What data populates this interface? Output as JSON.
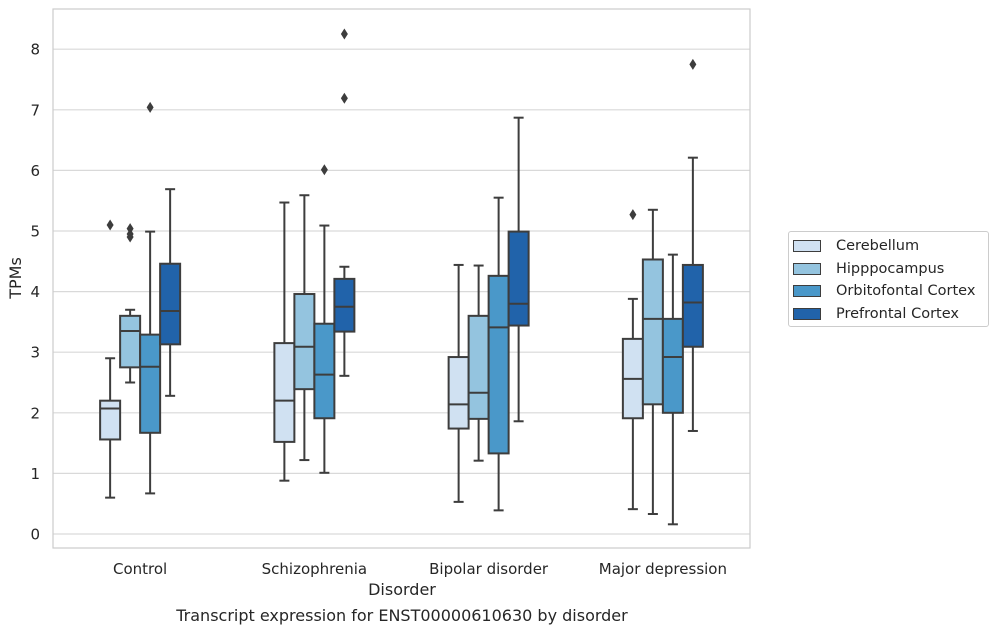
{
  "chart_data": {
    "type": "boxplot",
    "title": "",
    "xlabel": "Disorder",
    "ylabel": "TPMs",
    "ylim": [
      -0.22,
      8.67
    ],
    "yticks": [
      0,
      1,
      2,
      3,
      4,
      5,
      6,
      7,
      8
    ],
    "grid": "horizontal",
    "legend_position": "right",
    "categories": [
      "Control",
      "Schizophrenia",
      "Bipolar disorder",
      "Major depression"
    ],
    "series": [
      {
        "name": "Cerebellum",
        "color": "#d0e1f2",
        "boxes": [
          {
            "min": 0.6,
            "q1": 1.56,
            "median": 2.07,
            "q3": 2.2,
            "max": 2.9,
            "outliers": [
              5.1
            ]
          },
          {
            "min": 0.88,
            "q1": 1.52,
            "median": 2.2,
            "q3": 3.15,
            "max": 5.47,
            "outliers": []
          },
          {
            "min": 0.53,
            "q1": 1.74,
            "median": 2.14,
            "q3": 2.92,
            "max": 4.44,
            "outliers": []
          },
          {
            "min": 0.41,
            "q1": 1.91,
            "median": 2.56,
            "q3": 3.22,
            "max": 3.88,
            "outliers": [
              5.27
            ]
          }
        ]
      },
      {
        "name": "Hipppocampus",
        "color": "#94c4df",
        "boxes": [
          {
            "min": 2.5,
            "q1": 2.75,
            "median": 3.35,
            "q3": 3.6,
            "max": 3.7,
            "outliers": [
              4.9,
              4.95,
              5.04
            ]
          },
          {
            "min": 1.22,
            "q1": 2.39,
            "median": 3.09,
            "q3": 3.96,
            "max": 5.59,
            "outliers": []
          },
          {
            "min": 1.21,
            "q1": 1.9,
            "median": 2.33,
            "q3": 3.6,
            "max": 4.43,
            "outliers": []
          },
          {
            "min": 0.33,
            "q1": 2.14,
            "median": 3.55,
            "q3": 4.53,
            "max": 5.35,
            "outliers": []
          }
        ]
      },
      {
        "name": "Orbitofontal Cortex",
        "color": "#4a98c9",
        "boxes": [
          {
            "min": 0.67,
            "q1": 1.67,
            "median": 2.76,
            "q3": 3.29,
            "max": 4.99,
            "outliers": [
              7.04
            ]
          },
          {
            "min": 1.01,
            "q1": 1.91,
            "median": 2.63,
            "q3": 3.47,
            "max": 5.09,
            "outliers": [
              6.01
            ]
          },
          {
            "min": 0.39,
            "q1": 1.33,
            "median": 3.41,
            "q3": 4.26,
            "max": 5.55,
            "outliers": []
          },
          {
            "min": 0.16,
            "q1": 2.0,
            "median": 2.92,
            "q3": 3.55,
            "max": 4.61,
            "outliers": []
          }
        ]
      },
      {
        "name": "Prefrontal Cortex",
        "color": "#2163aa",
        "boxes": [
          {
            "min": 2.28,
            "q1": 3.13,
            "median": 3.68,
            "q3": 4.46,
            "max": 5.69,
            "outliers": []
          },
          {
            "min": 2.61,
            "q1": 3.34,
            "median": 3.75,
            "q3": 4.21,
            "max": 4.41,
            "outliers": [
              7.19,
              8.25
            ]
          },
          {
            "min": 1.86,
            "q1": 3.44,
            "median": 3.8,
            "q3": 4.99,
            "max": 6.87,
            "outliers": []
          },
          {
            "min": 1.7,
            "q1": 3.09,
            "median": 3.82,
            "q3": 4.44,
            "max": 6.21,
            "outliers": [
              7.75
            ]
          }
        ]
      }
    ]
  },
  "caption": "Transcript expression for ENST00000610630 by disorder"
}
